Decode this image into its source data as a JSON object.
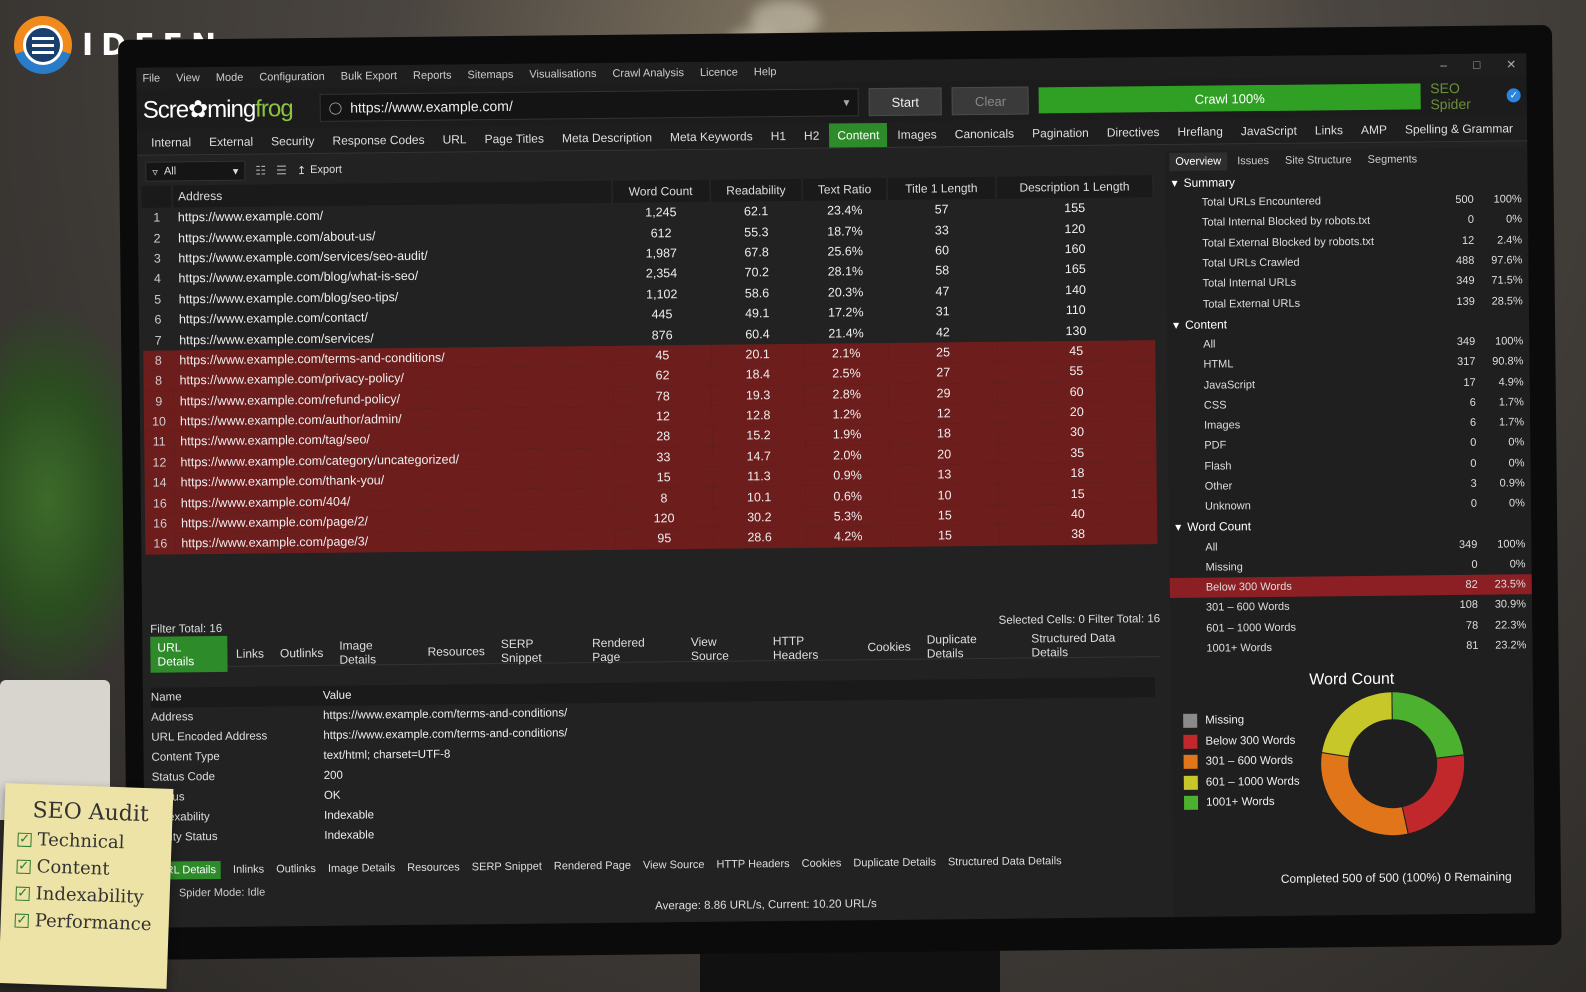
{
  "brand": {
    "name": "IDEEN"
  },
  "menu": [
    "File",
    "View",
    "Mode",
    "Configuration",
    "Bulk Export",
    "Reports",
    "Sitemaps",
    "Visualisations",
    "Crawl Analysis",
    "Licence",
    "Help"
  ],
  "toolbar": {
    "logo_a": "Scre",
    "logo_b": "ming",
    "logo_c": "frog",
    "url": "https://www.example.com/",
    "start": "Start",
    "clear": "Clear",
    "progress_label": "Crawl 100%",
    "product": "SEO Spider"
  },
  "tabs": [
    "Internal",
    "External",
    "Security",
    "Response Codes",
    "URL",
    "Page Titles",
    "Meta Description",
    "Meta Keywords",
    "H1",
    "H2",
    "Content",
    "Images",
    "Canonicals",
    "Pagination",
    "Directives",
    "Hreflang",
    "JavaScript",
    "Links",
    "AMP",
    "Spelling & Grammar"
  ],
  "filter": {
    "value": "All",
    "export": "Export"
  },
  "grid": {
    "columns": [
      "Address",
      "Word Count",
      "Readability",
      "Text Ratio",
      "Title 1 Length",
      "Description 1 Length"
    ],
    "rows": [
      {
        "i": "1",
        "url": "https://www.example.com/",
        "wc": "1,245",
        "r": "62.1",
        "tr": "23.4%",
        "t": "57",
        "d": "155",
        "hl": false
      },
      {
        "i": "2",
        "url": "https://www.example.com/about-us/",
        "wc": "612",
        "r": "55.3",
        "tr": "18.7%",
        "t": "33",
        "d": "120",
        "hl": false
      },
      {
        "i": "3",
        "url": "https://www.example.com/services/seo-audit/",
        "wc": "1,987",
        "r": "67.8",
        "tr": "25.6%",
        "t": "60",
        "d": "160",
        "hl": false
      },
      {
        "i": "4",
        "url": "https://www.example.com/blog/what-is-seo/",
        "wc": "2,354",
        "r": "70.2",
        "tr": "28.1%",
        "t": "58",
        "d": "165",
        "hl": false
      },
      {
        "i": "5",
        "url": "https://www.example.com/blog/seo-tips/",
        "wc": "1,102",
        "r": "58.6",
        "tr": "20.3%",
        "t": "47",
        "d": "140",
        "hl": false
      },
      {
        "i": "6",
        "url": "https://www.example.com/contact/",
        "wc": "445",
        "r": "49.1",
        "tr": "17.2%",
        "t": "31",
        "d": "110",
        "hl": false
      },
      {
        "i": "7",
        "url": "https://www.example.com/services/",
        "wc": "876",
        "r": "60.4",
        "tr": "21.4%",
        "t": "42",
        "d": "130",
        "hl": false
      },
      {
        "i": "8",
        "url": "https://www.example.com/terms-and-conditions/",
        "wc": "45",
        "r": "20.1",
        "tr": "2.1%",
        "t": "25",
        "d": "45",
        "hl": true
      },
      {
        "i": "8",
        "url": "https://www.example.com/privacy-policy/",
        "wc": "62",
        "r": "18.4",
        "tr": "2.5%",
        "t": "27",
        "d": "55",
        "hl": true
      },
      {
        "i": "9",
        "url": "https://www.example.com/refund-policy/",
        "wc": "78",
        "r": "19.3",
        "tr": "2.8%",
        "t": "29",
        "d": "60",
        "hl": true
      },
      {
        "i": "10",
        "url": "https://www.example.com/author/admin/",
        "wc": "12",
        "r": "12.8",
        "tr": "1.2%",
        "t": "12",
        "d": "20",
        "hl": true
      },
      {
        "i": "11",
        "url": "https://www.example.com/tag/seo/",
        "wc": "28",
        "r": "15.2",
        "tr": "1.9%",
        "t": "18",
        "d": "30",
        "hl": true
      },
      {
        "i": "12",
        "url": "https://www.example.com/category/uncategorized/",
        "wc": "33",
        "r": "14.7",
        "tr": "2.0%",
        "t": "20",
        "d": "35",
        "hl": true
      },
      {
        "i": "14",
        "url": "https://www.example.com/thank-you/",
        "wc": "15",
        "r": "11.3",
        "tr": "0.9%",
        "t": "13",
        "d": "18",
        "hl": true
      },
      {
        "i": "16",
        "url": "https://www.example.com/404/",
        "wc": "8",
        "r": "10.1",
        "tr": "0.6%",
        "t": "10",
        "d": "15",
        "hl": true
      },
      {
        "i": "16",
        "url": "https://www.example.com/page/2/",
        "wc": "120",
        "r": "30.2",
        "tr": "5.3%",
        "t": "15",
        "d": "40",
        "hl": true
      },
      {
        "i": "16",
        "url": "https://www.example.com/page/3/",
        "wc": "95",
        "r": "28.6",
        "tr": "4.2%",
        "t": "15",
        "d": "38",
        "hl": true
      }
    ],
    "filter_total": "Filter Total:  16",
    "selected": "Selected Cells:  0  Filter Total:  16"
  },
  "subtabs": [
    "URL Details",
    "Links",
    "Outlinks",
    "Image Details",
    "Resources",
    "SERP Snippet",
    "Rendered Page",
    "View Source",
    "HTTP Headers",
    "Cookies",
    "Duplicate Details",
    "Structured Data Details"
  ],
  "detail": {
    "head_name": "Name",
    "head_value": "Value",
    "rows": [
      {
        "k": "Address",
        "v": "https://www.example.com/terms-and-conditions/"
      },
      {
        "k": "URL Encoded Address",
        "v": "https://www.example.com/terms-and-conditions/"
      },
      {
        "k": "Content Type",
        "v": "text/html; charset=UTF-8"
      },
      {
        "k": "Status Code",
        "v": "200"
      },
      {
        "k": "Status",
        "v": "OK"
      },
      {
        "k": "Indexability",
        "v": "Indexable"
      },
      {
        "k": "ability Status",
        "v": "Indexable"
      }
    ]
  },
  "bottomtabs": [
    "URL Details",
    "Inlinks",
    "Outlinks",
    "Image Details",
    "Resources",
    "SERP Snippet",
    "Rendered Page",
    "View Source",
    "HTTP Headers",
    "Cookies",
    "Duplicate Details",
    "Structured Data Details"
  ],
  "spider_mode": "Spider Mode: Idle",
  "average": "Average: 8.86 URL/s, Current: 10.20 URL/s",
  "right": {
    "tabs": [
      "Overview",
      "Issues",
      "Site Structure",
      "Segments"
    ],
    "summary_title": "Summary",
    "summary": [
      {
        "l": "Total URLs Encountered",
        "n": "500",
        "p": "100%"
      },
      {
        "l": "Total Internal Blocked by robots.txt",
        "n": "0",
        "p": "0%"
      },
      {
        "l": "Total External Blocked by robots.txt",
        "n": "12",
        "p": "2.4%"
      },
      {
        "l": "Total URLs Crawled",
        "n": "488",
        "p": "97.6%"
      },
      {
        "l": "Total Internal URLs",
        "n": "349",
        "p": "71.5%"
      },
      {
        "l": "Total External URLs",
        "n": "139",
        "p": "28.5%"
      }
    ],
    "content_title": "Content",
    "content": [
      {
        "l": "All",
        "n": "349",
        "p": "100%"
      },
      {
        "l": "HTML",
        "n": "317",
        "p": "90.8%"
      },
      {
        "l": "JavaScript",
        "n": "17",
        "p": "4.9%"
      },
      {
        "l": "CSS",
        "n": "6",
        "p": "1.7%"
      },
      {
        "l": "Images",
        "n": "6",
        "p": "1.7%"
      },
      {
        "l": "PDF",
        "n": "0",
        "p": "0%"
      },
      {
        "l": "Flash",
        "n": "0",
        "p": "0%"
      },
      {
        "l": "Other",
        "n": "3",
        "p": "0.9%"
      },
      {
        "l": "Unknown",
        "n": "0",
        "p": "0%"
      }
    ],
    "wc_title": "Word Count",
    "wordcount": [
      {
        "l": "All",
        "n": "349",
        "p": "100%",
        "hl": false
      },
      {
        "l": "Missing",
        "n": "0",
        "p": "0%",
        "hl": false
      },
      {
        "l": "Below 300 Words",
        "n": "82",
        "p": "23.5%",
        "hl": true
      },
      {
        "l": "301 – 600 Words",
        "n": "108",
        "p": "30.9%",
        "hl": false
      },
      {
        "l": "601 – 1000 Words",
        "n": "78",
        "p": "22.3%",
        "hl": false
      },
      {
        "l": "1001+ Words",
        "n": "81",
        "p": "23.2%",
        "hl": false
      }
    ],
    "chart_title": "Word Count",
    "status": "Completed 500 of 500 (100%) 0 Remaining"
  },
  "chart_data": {
    "type": "pie",
    "title": "Word Count",
    "categories": [
      "Missing",
      "Below 300 Words",
      "301 – 600 Words",
      "601 – 1000 Words",
      "1001+ Words"
    ],
    "values": [
      0,
      82,
      108,
      78,
      81
    ],
    "colors": [
      "#8a8a8a",
      "#c0282c",
      "#e0751a",
      "#c7c72a",
      "#4bb12e"
    ],
    "legend": "left"
  },
  "note": {
    "title": "SEO Audit",
    "items": [
      "Technical",
      "Content",
      "Indexability",
      "Performance"
    ]
  }
}
